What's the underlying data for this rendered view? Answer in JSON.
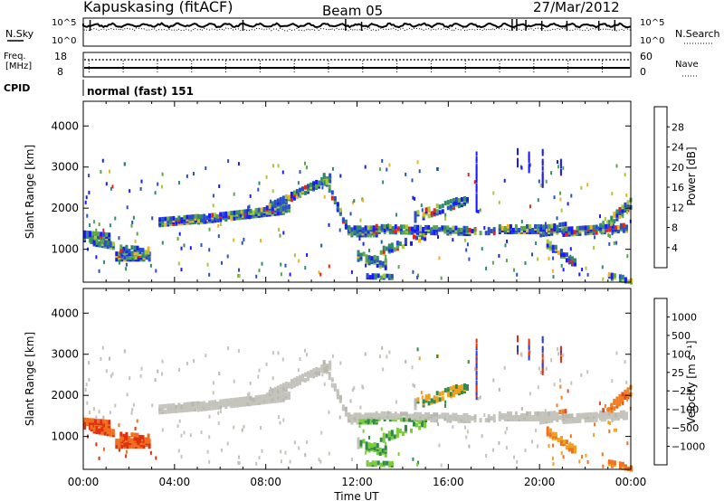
{
  "header": {
    "station": "Kapuskasing (fitACF)",
    "beam": "Beam 05",
    "date": "27/Mar/2012"
  },
  "noise_panel": {
    "left_label": "N.Sky",
    "right_label": "N.Search",
    "y_ticks": [
      "10^5",
      "10^0"
    ]
  },
  "freq_panel": {
    "left_label_1": "Freq.",
    "left_label_2": "[MHz]",
    "left_ticks": [
      "18",
      "8"
    ],
    "right_label": "Nave",
    "right_ticks": [
      "60",
      "0"
    ]
  },
  "cpid": {
    "label": "CPID",
    "text": "normal (fast) 151"
  },
  "chart_data": [
    {
      "type": "heatmap",
      "parameter": "power",
      "xlabel": "",
      "ylabel": "Slant Range [km]",
      "x_range": [
        "00:00",
        "24:00"
      ],
      "ylim": [
        200,
        4600
      ],
      "y_ticks": [
        1000,
        2000,
        3000,
        4000
      ],
      "colorbar": {
        "label": "Power [dB]",
        "ticks": [
          4,
          8,
          12,
          16,
          20,
          24,
          28
        ],
        "colors": [
          "#1a1aff",
          "#2a4fc8",
          "#2f8b6a",
          "#5aa64a",
          "#a6c83a",
          "#f0b41e",
          "#f07a1a",
          "#e02818"
        ]
      }
    },
    {
      "type": "heatmap",
      "parameter": "velocity",
      "xlabel": "Time UT",
      "ylabel": "Slant Range [km]",
      "x_ticks": [
        "00:00",
        "04:00",
        "08:00",
        "12:00",
        "16:00",
        "20:00",
        "00:00"
      ],
      "ylim": [
        200,
        4600
      ],
      "y_ticks": [
        1000,
        2000,
        3000,
        4000
      ],
      "colorbar": {
        "label": "Velocity [m s⁻¹]",
        "ticks": [
          "1000",
          "500",
          "100",
          "25",
          "−25",
          "−100",
          "−500",
          "−1000"
        ],
        "colors": [
          "#2a3fd0",
          "#2a6a9a",
          "#2e8b4a",
          "#7ccc3a",
          "#c0c0b8",
          "#c8c8c0",
          "#f0a020",
          "#f07020",
          "#e02818"
        ]
      }
    }
  ]
}
